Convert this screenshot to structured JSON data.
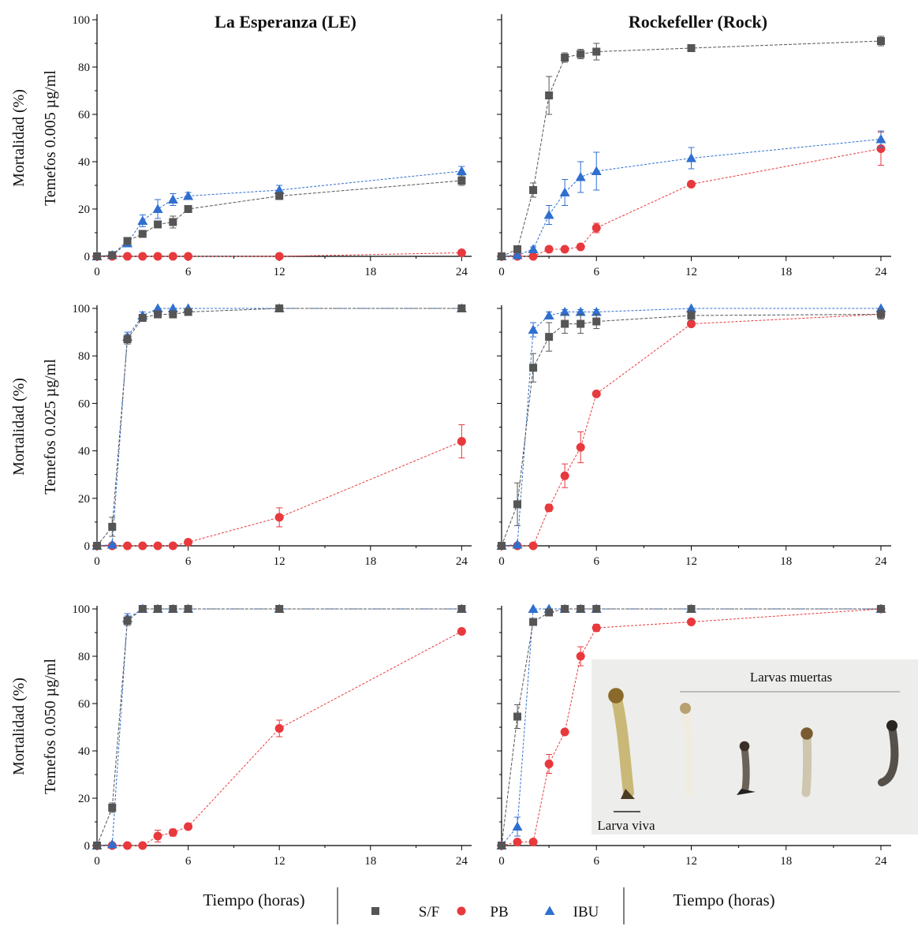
{
  "colors": {
    "S/F": "#555555",
    "PB": "#e8393d",
    "IBU": "#2f6fd0",
    "axis": "#000000"
  },
  "column_titles": [
    "La Esperanza (LE)",
    "Rockefeller (Rock)"
  ],
  "row_labels": [
    [
      "Mortalidad (%)",
      "Temefos 0.005 µg/ml"
    ],
    [
      "Mortalidad (%)",
      "Temefos 0.025 µg/ml"
    ],
    [
      "Mortalidad (%)",
      "Temefos 0.050 µg/ml"
    ]
  ],
  "x_axis_label": "Tiempo (horas)",
  "x_ticks": [
    0,
    6,
    12,
    18,
    24
  ],
  "y_ticks": [
    0,
    20,
    40,
    60,
    80,
    100
  ],
  "legend": [
    {
      "name": "S/F",
      "marker": "square"
    },
    {
      "name": "PB",
      "marker": "circle"
    },
    {
      "name": "IBU",
      "marker": "triangle"
    }
  ],
  "inset": {
    "title": "Larvas muertas",
    "caption": "Larva viva"
  },
  "chart_data": [
    {
      "type": "line",
      "row": 0,
      "col": 0,
      "x": [
        0,
        1,
        2,
        3,
        4,
        5,
        6,
        12,
        24
      ],
      "xlim": [
        0,
        24.5
      ],
      "ylim": [
        0,
        100
      ],
      "series": [
        {
          "name": "S/F",
          "values": [
            0,
            0.5,
            6.5,
            9.5,
            13.5,
            14.5,
            20,
            25.5,
            32
          ],
          "errors": [
            0,
            0.5,
            1.5,
            1.5,
            1,
            2.5,
            1.5,
            1.5,
            2
          ]
        },
        {
          "name": "PB",
          "values": [
            0,
            0,
            0,
            0,
            0,
            0,
            0,
            0,
            1.5
          ],
          "errors": [
            0,
            0,
            0,
            0,
            0,
            0,
            0,
            0,
            1
          ]
        },
        {
          "name": "IBU",
          "values": [
            0,
            0.5,
            5.5,
            15,
            20,
            24,
            25.5,
            28,
            36
          ],
          "errors": [
            0,
            0.5,
            1,
            2.5,
            4,
            2.5,
            1.5,
            2,
            2
          ]
        }
      ]
    },
    {
      "type": "line",
      "row": 0,
      "col": 1,
      "x": [
        0,
        1,
        2,
        3,
        4,
        5,
        6,
        12,
        24
      ],
      "xlim": [
        0,
        24.5
      ],
      "ylim": [
        0,
        100
      ],
      "series": [
        {
          "name": "S/F",
          "values": [
            0,
            3,
            28,
            68,
            84,
            85.5,
            86.5,
            88,
            91
          ],
          "errors": [
            0,
            1,
            3,
            8,
            2,
            2,
            3.5,
            1.5,
            2
          ]
        },
        {
          "name": "PB",
          "values": [
            0,
            0,
            0,
            3,
            3,
            4,
            12,
            30.5,
            45.5
          ],
          "errors": [
            0,
            0,
            0,
            0.5,
            0.5,
            1,
            2,
            1,
            7
          ]
        },
        {
          "name": "IBU",
          "values": [
            0,
            0.5,
            3,
            17.5,
            27,
            33.5,
            36,
            41.5,
            49.5
          ],
          "errors": [
            0,
            0.5,
            1,
            4,
            5.5,
            6.5,
            8,
            4.5,
            3.5
          ]
        }
      ]
    },
    {
      "type": "line",
      "row": 1,
      "col": 0,
      "x": [
        0,
        1,
        2,
        3,
        4,
        5,
        6,
        12,
        24
      ],
      "xlim": [
        0,
        24.5
      ],
      "ylim": [
        0,
        100
      ],
      "series": [
        {
          "name": "S/F",
          "values": [
            0,
            8,
            87,
            96,
            97.5,
            97.5,
            98.5,
            100,
            100
          ],
          "errors": [
            0,
            4,
            2,
            1.5,
            1,
            1.5,
            1,
            0,
            0
          ]
        },
        {
          "name": "PB",
          "values": [
            0,
            0,
            0,
            0,
            0,
            0,
            1.5,
            12,
            44
          ],
          "errors": [
            0,
            0,
            0,
            0,
            0,
            0,
            1,
            4,
            7
          ]
        },
        {
          "name": "IBU",
          "values": [
            0,
            0.5,
            88,
            97,
            100,
            100,
            100,
            100,
            100
          ],
          "errors": [
            0,
            0.5,
            2,
            1.5,
            0,
            0,
            0,
            0,
            0
          ]
        }
      ]
    },
    {
      "type": "line",
      "row": 1,
      "col": 1,
      "x": [
        0,
        1,
        2,
        3,
        4,
        5,
        6,
        12,
        24
      ],
      "xlim": [
        0,
        24.5
      ],
      "ylim": [
        0,
        100
      ],
      "series": [
        {
          "name": "S/F",
          "values": [
            0,
            17.5,
            75,
            88,
            93.5,
            93.5,
            94.5,
            97,
            97.5
          ],
          "errors": [
            0,
            9,
            6,
            6,
            4,
            4,
            3,
            2,
            2
          ]
        },
        {
          "name": "PB",
          "values": [
            0,
            0,
            0,
            16,
            29.5,
            41.5,
            64,
            93.5,
            97.5
          ],
          "errors": [
            0,
            0,
            0,
            1.5,
            5,
            6.5,
            1,
            1,
            1.5
          ]
        },
        {
          "name": "IBU",
          "values": [
            0,
            0.5,
            91,
            97,
            98.5,
            98.5,
            98.5,
            100,
            100
          ],
          "errors": [
            0,
            0.5,
            3,
            1.5,
            1,
            1,
            1,
            0,
            0
          ]
        }
      ]
    },
    {
      "type": "line",
      "row": 2,
      "col": 0,
      "x": [
        0,
        1,
        2,
        3,
        4,
        5,
        6,
        12,
        24
      ],
      "xlim": [
        0,
        24.5
      ],
      "ylim": [
        0,
        100
      ],
      "series": [
        {
          "name": "S/F",
          "values": [
            0,
            16,
            95,
            100,
            100,
            100,
            100,
            100,
            100
          ],
          "errors": [
            0,
            2,
            2,
            0,
            0,
            0,
            0,
            0,
            0
          ]
        },
        {
          "name": "PB",
          "values": [
            0,
            0,
            0,
            0,
            4,
            5.5,
            8,
            49.5,
            90.5
          ],
          "errors": [
            0,
            0,
            0,
            0,
            2.5,
            1.5,
            1,
            3.5,
            1
          ]
        },
        {
          "name": "IBU",
          "values": [
            0,
            0.5,
            96,
            100,
            100,
            100,
            100,
            100,
            100
          ],
          "errors": [
            0,
            0.5,
            2,
            0,
            0,
            0,
            0,
            0,
            0
          ]
        }
      ]
    },
    {
      "type": "line",
      "row": 2,
      "col": 1,
      "x": [
        0,
        1,
        2,
        3,
        4,
        5,
        6,
        12,
        24
      ],
      "xlim": [
        0,
        24.5
      ],
      "ylim": [
        0,
        100
      ],
      "series": [
        {
          "name": "S/F",
          "values": [
            0,
            54.5,
            94.5,
            98.5,
            100,
            100,
            100,
            100,
            100
          ],
          "errors": [
            0,
            5,
            1.5,
            1,
            0,
            0,
            0,
            0,
            0
          ]
        },
        {
          "name": "PB",
          "values": [
            0,
            1.5,
            1.5,
            34.5,
            48,
            80,
            92,
            94.5,
            100
          ],
          "errors": [
            0,
            0.5,
            0.5,
            4,
            1,
            4,
            1.5,
            1,
            0
          ]
        },
        {
          "name": "IBU",
          "values": [
            0,
            8,
            100,
            100,
            100,
            100,
            100,
            100,
            100
          ],
          "errors": [
            0,
            4,
            0,
            0,
            0,
            0,
            0,
            0,
            0
          ]
        }
      ]
    }
  ]
}
